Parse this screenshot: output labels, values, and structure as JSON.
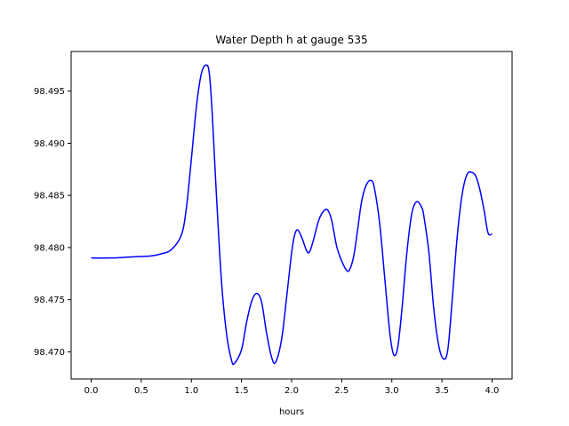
{
  "chart_data": {
    "type": "line",
    "title": "Water Depth h at gauge 535",
    "xlabel": "hours",
    "ylabel": "",
    "xlim": [
      -0.2,
      4.2
    ],
    "ylim": [
      98.4674,
      98.4988
    ],
    "xticks": [
      0.0,
      0.5,
      1.0,
      1.5,
      2.0,
      2.5,
      3.0,
      3.5,
      4.0
    ],
    "xtick_labels": [
      "0.0",
      "0.5",
      "1.0",
      "1.5",
      "2.0",
      "2.5",
      "3.0",
      "3.5",
      "4.0"
    ],
    "yticks": [
      98.47,
      98.475,
      98.48,
      98.485,
      98.49,
      98.495
    ],
    "ytick_labels": [
      "98.470",
      "98.475",
      "98.480",
      "98.485",
      "98.490",
      "98.495"
    ],
    "grid": false,
    "series": [
      {
        "color": "#0000ff",
        "x": [
          0.0,
          0.2,
          0.4,
          0.6,
          0.7,
          0.8,
          0.9,
          0.95,
          1.0,
          1.05,
          1.1,
          1.15,
          1.18,
          1.21,
          1.25,
          1.3,
          1.35,
          1.4,
          1.43,
          1.5,
          1.55,
          1.6,
          1.65,
          1.7,
          1.75,
          1.8,
          1.84,
          1.9,
          1.95,
          2.0,
          2.03,
          2.06,
          2.1,
          2.15,
          2.18,
          2.22,
          2.27,
          2.32,
          2.36,
          2.4,
          2.45,
          2.5,
          2.55,
          2.58,
          2.62,
          2.66,
          2.7,
          2.75,
          2.8,
          2.83,
          2.88,
          2.93,
          2.98,
          3.02,
          3.06,
          3.1,
          3.15,
          3.2,
          3.25,
          3.3,
          3.32,
          3.37,
          3.42,
          3.47,
          3.52,
          3.56,
          3.6,
          3.65,
          3.7,
          3.75,
          3.8,
          3.84,
          3.88,
          3.92,
          3.96,
          4.0
        ],
        "y": [
          98.479,
          98.479,
          98.4791,
          98.4792,
          98.4794,
          98.4798,
          98.4812,
          98.4838,
          98.4885,
          98.4935,
          98.4967,
          98.4975,
          98.4966,
          98.4925,
          98.485,
          98.4768,
          98.4718,
          98.4692,
          98.4689,
          98.4702,
          98.4728,
          98.4748,
          98.4756,
          98.4748,
          98.4718,
          98.4695,
          98.469,
          98.4712,
          98.4752,
          98.4795,
          98.4812,
          98.4817,
          98.481,
          98.4797,
          98.4796,
          98.4808,
          98.4826,
          98.4835,
          98.4836,
          98.4826,
          98.4801,
          98.4787,
          98.4778,
          98.4779,
          98.4792,
          98.4818,
          98.4845,
          98.4861,
          98.4864,
          98.4855,
          98.4822,
          98.477,
          98.4718,
          98.4697,
          98.4705,
          98.474,
          98.4795,
          98.4833,
          98.4844,
          98.4838,
          98.483,
          98.4795,
          98.474,
          98.4705,
          98.4693,
          98.4703,
          98.4747,
          98.4808,
          98.485,
          98.487,
          98.4872,
          98.4868,
          98.4855,
          98.4836,
          98.4814,
          98.4813
        ]
      }
    ]
  }
}
